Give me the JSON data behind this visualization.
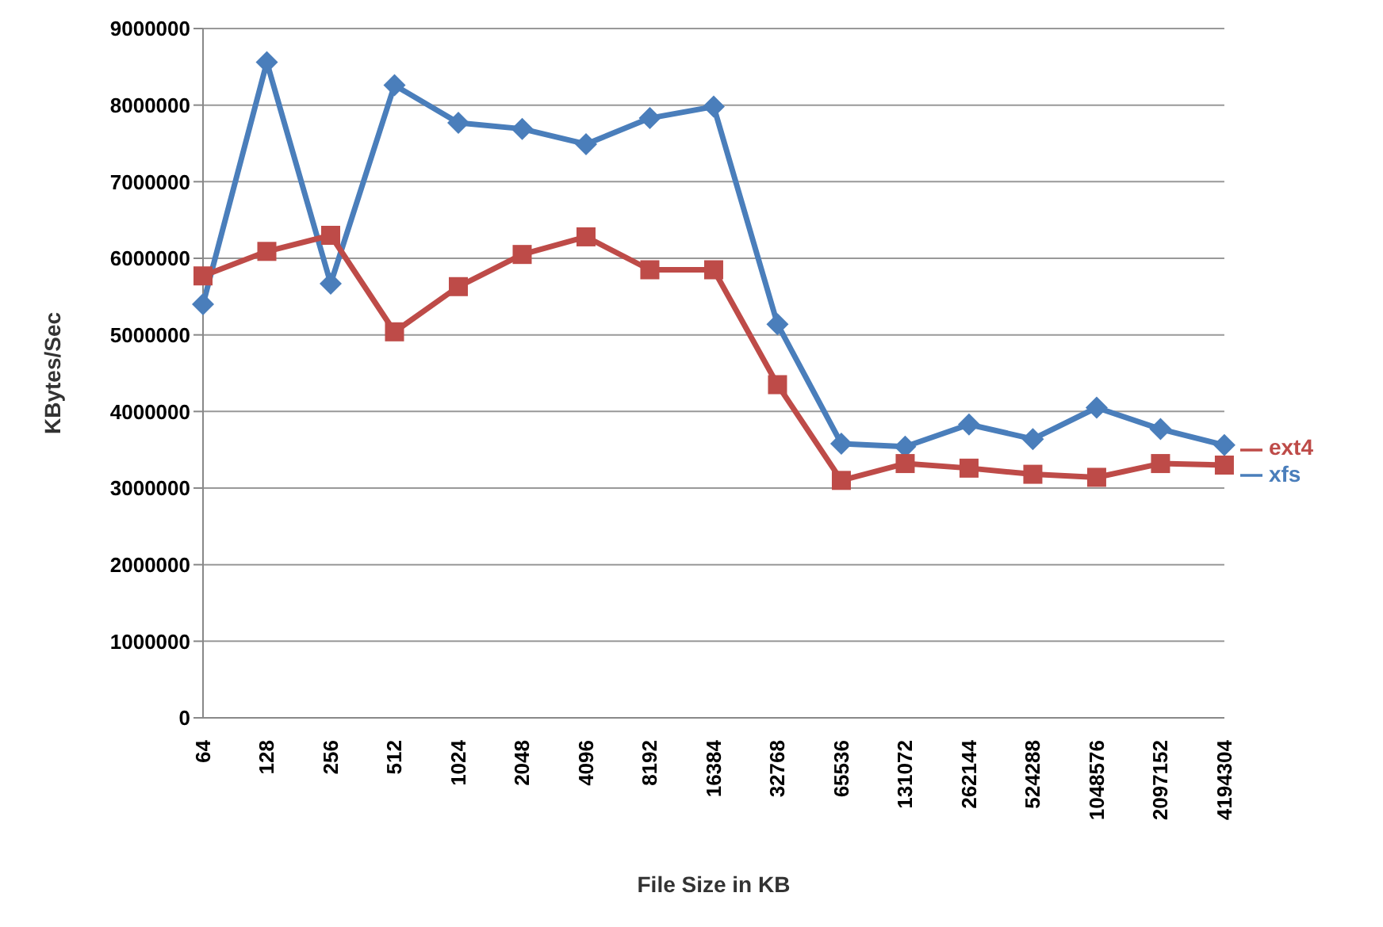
{
  "chart_data": {
    "type": "line",
    "xlabel": "File Size in KB",
    "ylabel": "KBytes/Sec",
    "categories": [
      "64",
      "128",
      "256",
      "512",
      "1024",
      "2048",
      "4096",
      "8192",
      "16384",
      "32768",
      "65536",
      "131072",
      "262144",
      "524288",
      "1048576",
      "2097152",
      "4194304"
    ],
    "series": [
      {
        "name": "xfs",
        "color": "#4a7ebb",
        "marker": "diamond",
        "values": [
          5400000,
          8560000,
          5670000,
          8260000,
          7770000,
          7690000,
          7490000,
          7830000,
          7980000,
          5140000,
          3580000,
          3540000,
          3830000,
          3640000,
          4050000,
          3770000,
          3560000
        ]
      },
      {
        "name": "ext4",
        "color": "#be4b48",
        "marker": "square",
        "values": [
          5770000,
          6090000,
          6300000,
          5040000,
          5630000,
          6050000,
          6280000,
          5850000,
          5850000,
          4350000,
          3100000,
          3320000,
          3260000,
          3180000,
          3140000,
          3320000,
          3300000
        ]
      }
    ],
    "ylim": [
      0,
      9000000
    ],
    "yticks": [
      0,
      1000000,
      2000000,
      3000000,
      4000000,
      5000000,
      6000000,
      7000000,
      8000000,
      9000000
    ],
    "grid": "y",
    "legend": "right",
    "line_style": "solid"
  }
}
